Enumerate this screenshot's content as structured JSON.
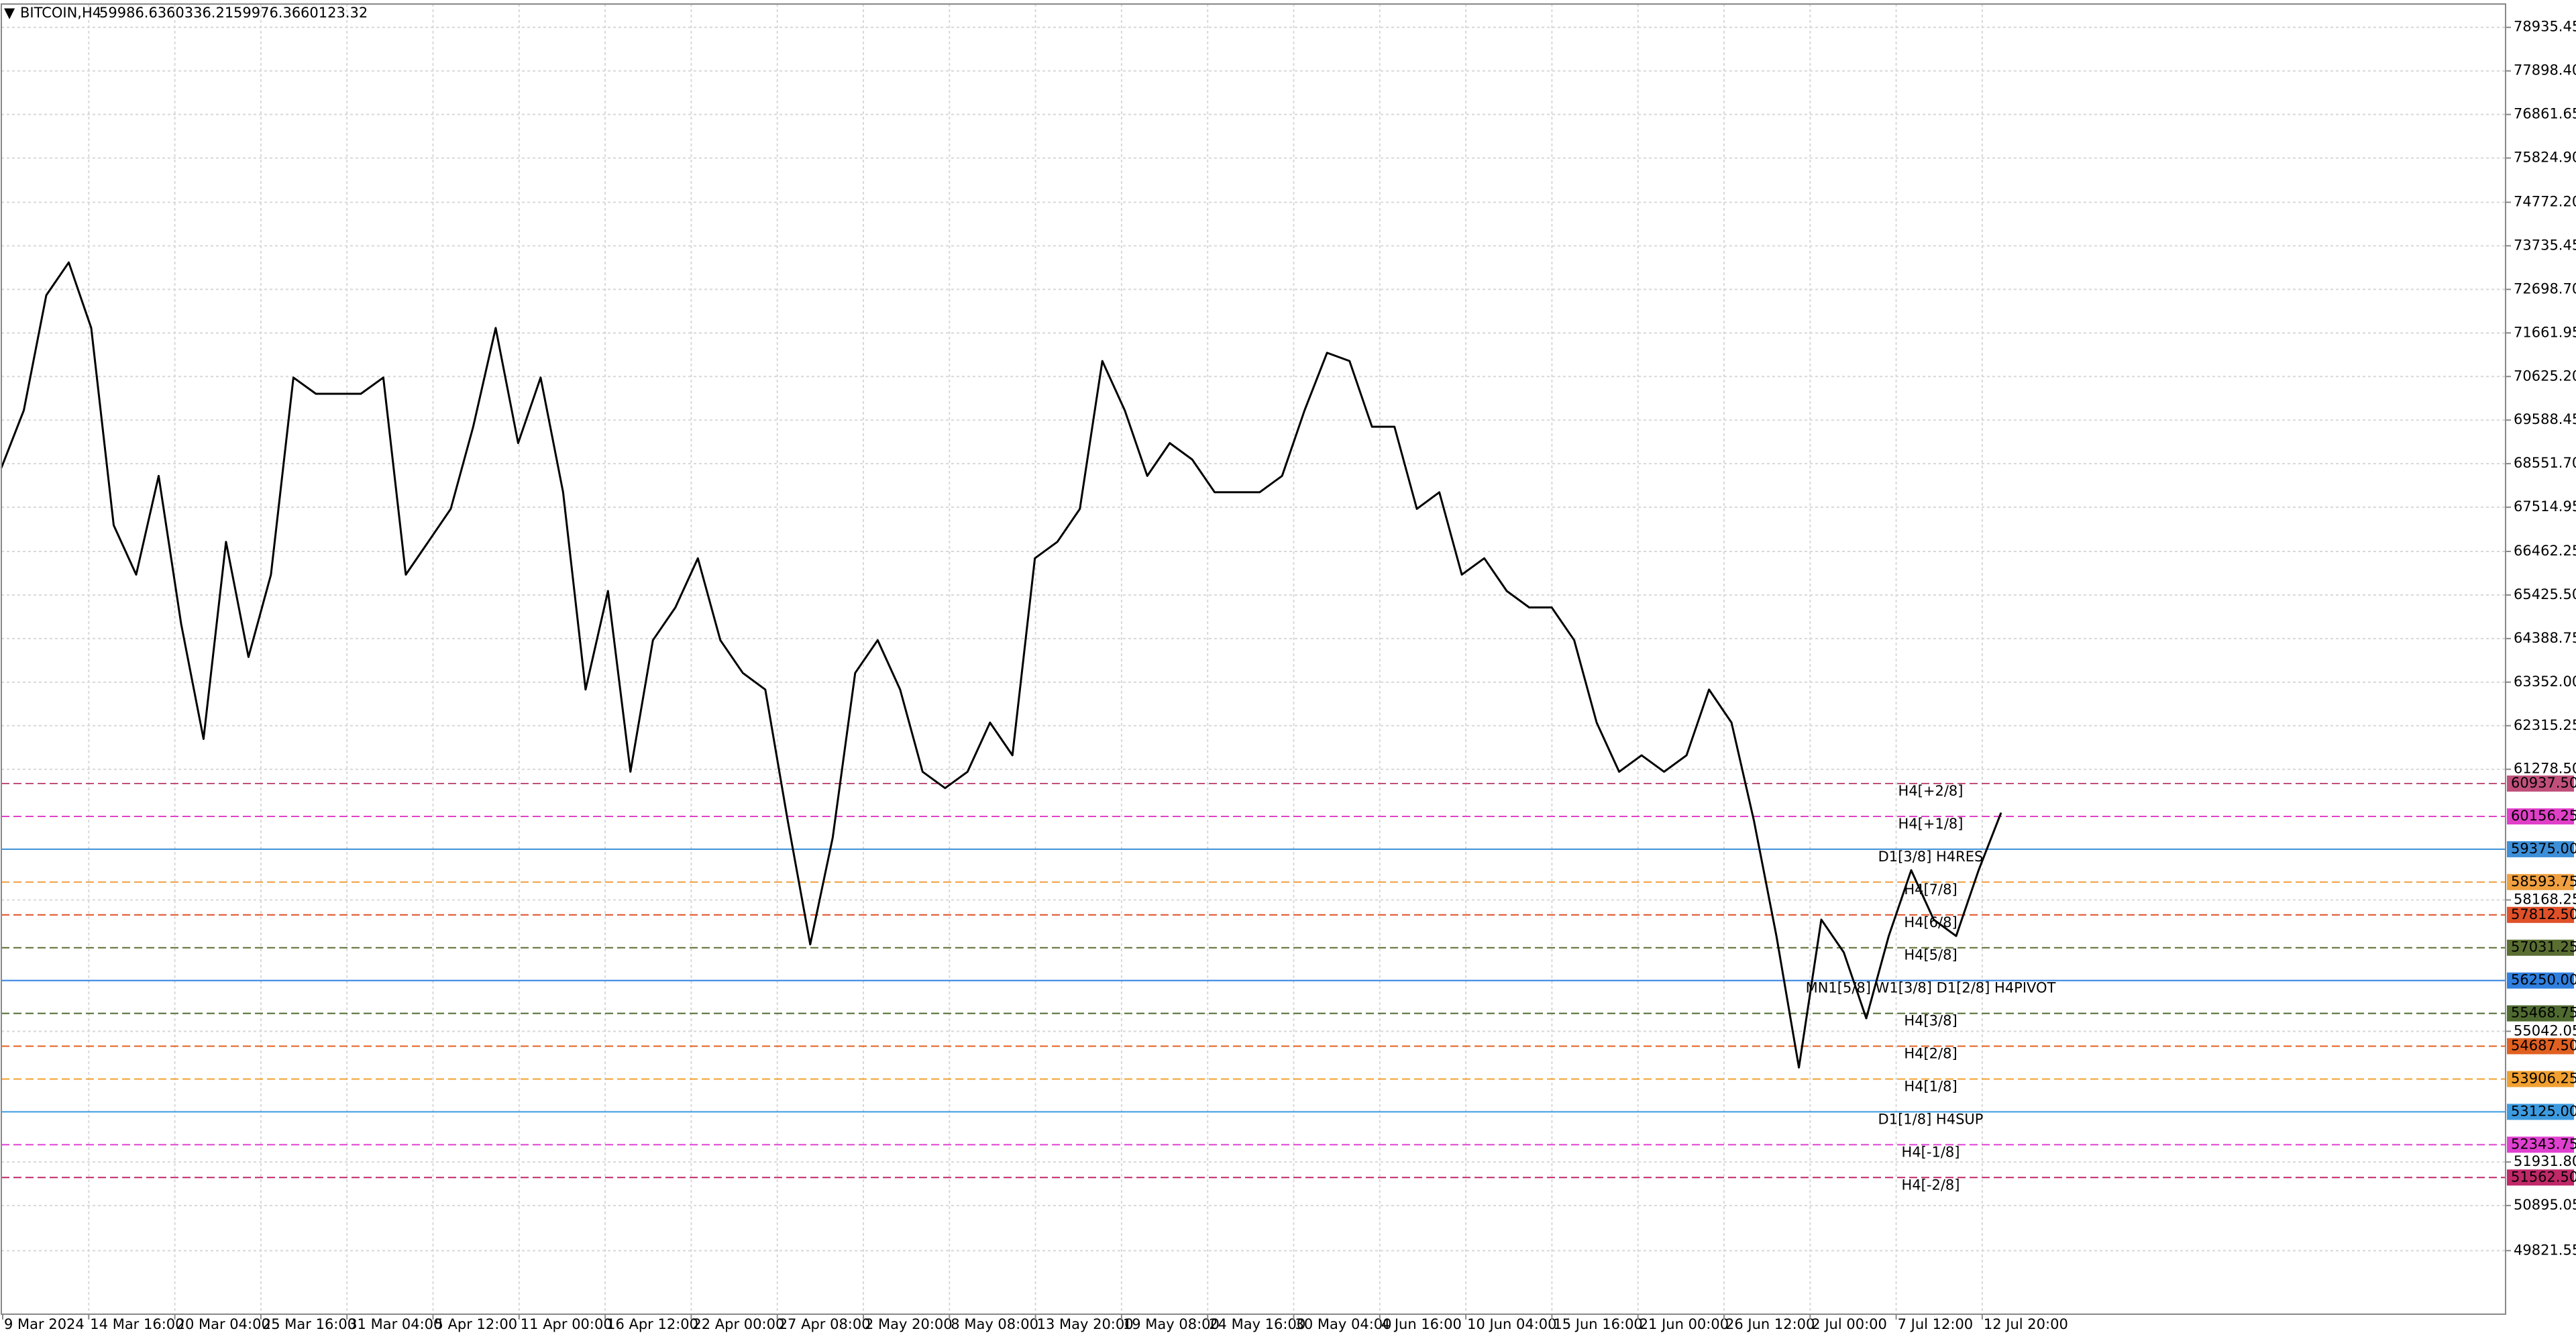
{
  "header": {
    "symbol": "BITCOIN,H4",
    "open": 59986.63,
    "high": 60336.21,
    "low": 59976.36,
    "close": 60123.32
  },
  "chart_data": {
    "type": "line",
    "color": "#000000",
    "grid": true,
    "values": [
      68450,
      69820,
      72560,
      73340,
      71780,
      67085,
      65910,
      68260,
      64740,
      62000,
      66690,
      63950,
      65910,
      70600,
      70215,
      70215,
      70215,
      70600,
      65910,
      66690,
      67475,
      69430,
      71780,
      69040,
      70600,
      67870,
      63175,
      65520,
      61220,
      64350,
      65130,
      66300,
      64350,
      63570,
      63175,
      60050,
      57110,
      59650,
      63570,
      64350,
      63175,
      61220,
      60830,
      61220,
      62390,
      61610,
      66300,
      66690,
      67475,
      70995,
      69820,
      68260,
      69040,
      68650,
      67870,
      67870,
      67870,
      68260,
      69820,
      71190,
      70995,
      69430,
      69430,
      67475,
      67870,
      65910,
      66300,
      65520,
      65130,
      65130,
      64350,
      62390,
      61220,
      61610,
      61220,
      61610,
      63175,
      62390,
      60050,
      57310,
      54180,
      57700,
      56920,
      55350,
      57310,
      58875,
      57700,
      57310,
      58875,
      60245
    ],
    "x_labels": [
      "9 Mar 2024",
      "14 Mar 16:00",
      "20 Mar 04:00",
      "25 Mar 16:00",
      "31 Mar 04:00",
      "5 Apr 12:00",
      "11 Apr 00:00",
      "16 Apr 12:00",
      "22 Apr 00:00",
      "27 Apr 08:00",
      "2 May 20:00",
      "8 May 08:00",
      "13 May 20:00",
      "19 May 08:00",
      "24 May 16:00",
      "30 May 04:00",
      "4 Jun 16:00",
      "10 Jun 04:00",
      "15 Jun 16:00",
      "21 Jun 00:00",
      "26 Jun 12:00",
      "2 Jul 00:00",
      "7 Jul 12:00",
      "12 Jul 20:00"
    ],
    "ylim": [
      48310,
      79490
    ],
    "yticks": [
      78935.45,
      {
        "value": 77898.4,
        "label": "77898.40"
      },
      76861.65,
      {
        "value": 75824.9,
        "label": "75824.90"
      },
      {
        "value": 74772.2,
        "label": "74772.20"
      },
      73735.45,
      {
        "value": 72698.7,
        "label": "72698.70"
      },
      71661.95,
      {
        "value": 70625.2,
        "label": "70625.20"
      },
      69588.45,
      {
        "value": 68551.7,
        "label": "68551.70"
      },
      67514.95,
      66462.25,
      {
        "value": 65425.5,
        "label": "65425.50"
      },
      64388.75,
      {
        "value": 63352,
        "label": "63352.00"
      },
      62315.25,
      {
        "value": 61278.5,
        "label": "61278.50"
      },
      58168.25,
      55042.05,
      {
        "value": 51931.8,
        "label": "51931.80"
      },
      50895.05,
      49821.55
    ],
    "levels": [
      {
        "label": "H4[+2/8]",
        "value": 60937.5,
        "value_label": "60937.50",
        "color": "#c0507a",
        "style": "dashed"
      },
      {
        "label": "H4[+1/8]",
        "value": 60156.25,
        "value_label": "60156.25",
        "color": "#e040c8",
        "style": "dashed"
      },
      {
        "label": "D1[3/8] H4RES",
        "value": 59375,
        "value_label": "59375.00",
        "color": "#3c8fd8",
        "style": "solid"
      },
      {
        "label": "H4[7/8]",
        "value": 58593.75,
        "value_label": "58593.75",
        "color": "#f0a040",
        "style": "dashed"
      },
      {
        "label": "H4[6/8]",
        "value": 57812.5,
        "value_label": "57812.50",
        "color": "#e05028",
        "style": "dashed"
      },
      {
        "label": "H4[5/8]",
        "value": 57031.25,
        "value_label": "57031.25",
        "color": "#5a6e32",
        "style": "dashed"
      },
      {
        "label": "MN1[5/8] W1[3/8] D1[2/8] H4PIVOT",
        "value": 56250,
        "value_label": "56250.00",
        "color": "#2f7fe0",
        "style": "solid"
      },
      {
        "label": "H4[3/8]",
        "value": 55468.75,
        "value_label": "55468.75",
        "color": "#4f6a30",
        "style": "dashed"
      },
      {
        "label": "H4[2/8]",
        "value": 54687.5,
        "value_label": "54687.50",
        "color": "#e06020",
        "style": "dashed"
      },
      {
        "label": "H4[1/8]",
        "value": 53906.25,
        "value_label": "53906.25",
        "color": "#f0a030",
        "style": "dashed"
      },
      {
        "label": "D1[1/8] H4SUP",
        "value": 53125,
        "value_label": "53125.00",
        "color": "#3c9be0",
        "style": "solid"
      },
      {
        "label": "H4[-1/8]",
        "value": 52343.75,
        "value_label": "52343.75",
        "color": "#e040d0",
        "style": "dashed"
      },
      {
        "label": "H4[-2/8]",
        "value": 51562.5,
        "value_label": "51562.50",
        "color": "#c02868",
        "style": "dashed"
      }
    ]
  }
}
